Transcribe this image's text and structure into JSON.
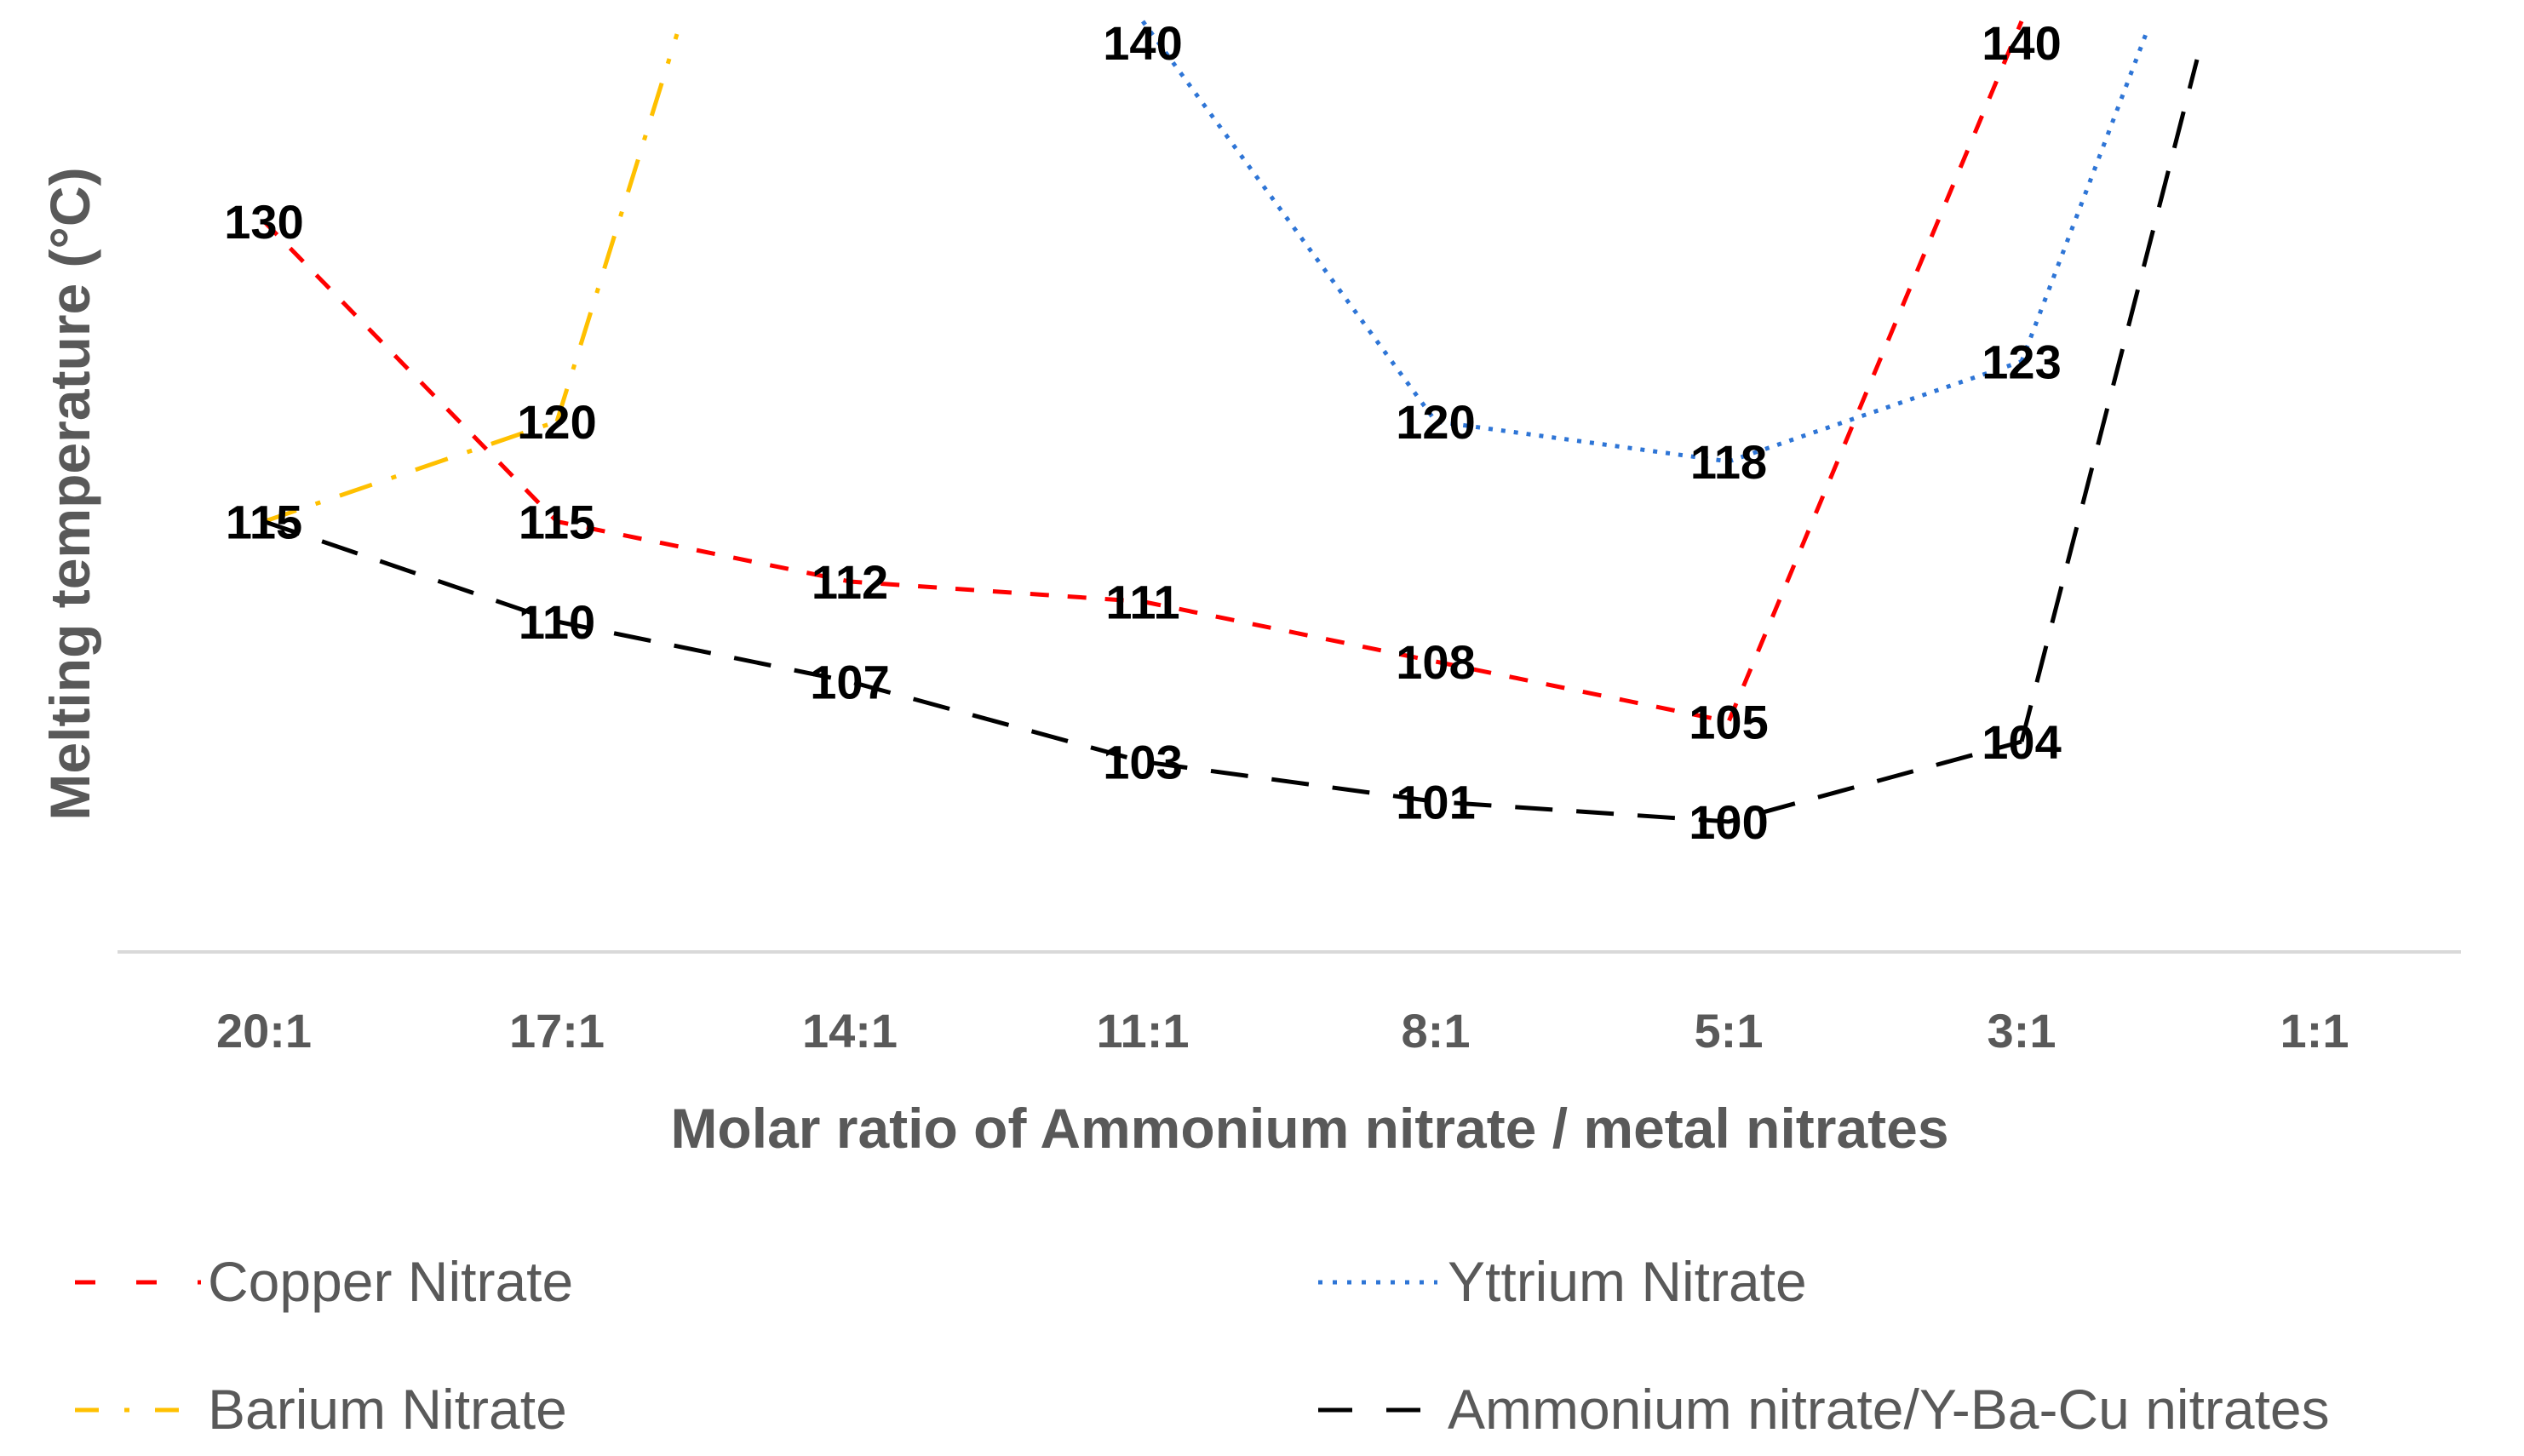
{
  "chart_data": {
    "type": "line",
    "title": "",
    "xlabel": "Molar ratio of Ammonium nitrate / metal nitrates",
    "ylabel": "Melting temperature (°C)",
    "categories": [
      "20:1",
      "17:1",
      "14:1",
      "11:1",
      "8:1",
      "5:1",
      "3:1",
      "1:1"
    ],
    "ylim": [
      90,
      145
    ],
    "grid": false,
    "legend_position": "bottom",
    "series": [
      {
        "name": "Copper Nitrate",
        "color": "#ff0000",
        "dash": "short-dash",
        "values": [
          130,
          115,
          112,
          111,
          108,
          105,
          140,
          null
        ],
        "labels": [
          "130",
          "115",
          "112",
          "111",
          "108",
          "105",
          "140",
          ""
        ]
      },
      {
        "name": "Yttrium Nitrate",
        "color": "#2e75d6",
        "dash": "dot",
        "values": [
          null,
          null,
          null,
          140,
          120,
          118,
          123,
          null
        ],
        "labels": [
          "",
          "",
          "",
          "140",
          "120",
          "118",
          "123",
          ""
        ]
      },
      {
        "name": "Barium Nitrate",
        "color": "#ffc000",
        "dash": "dash-dot",
        "values": [
          115,
          120,
          null,
          null,
          null,
          null,
          null,
          null
        ],
        "labels": [
          "",
          "120",
          "",
          "",
          "",
          "",
          "",
          ""
        ]
      },
      {
        "name": "Ammonium nitrate/Y-Ba-Cu nitrates",
        "color": "#000000",
        "dash": "long-dash",
        "values": [
          115,
          110,
          107,
          103,
          101,
          100,
          104,
          null
        ],
        "labels": [
          "115",
          "110",
          "107",
          "103",
          "101",
          "100",
          "104",
          ""
        ]
      }
    ]
  }
}
